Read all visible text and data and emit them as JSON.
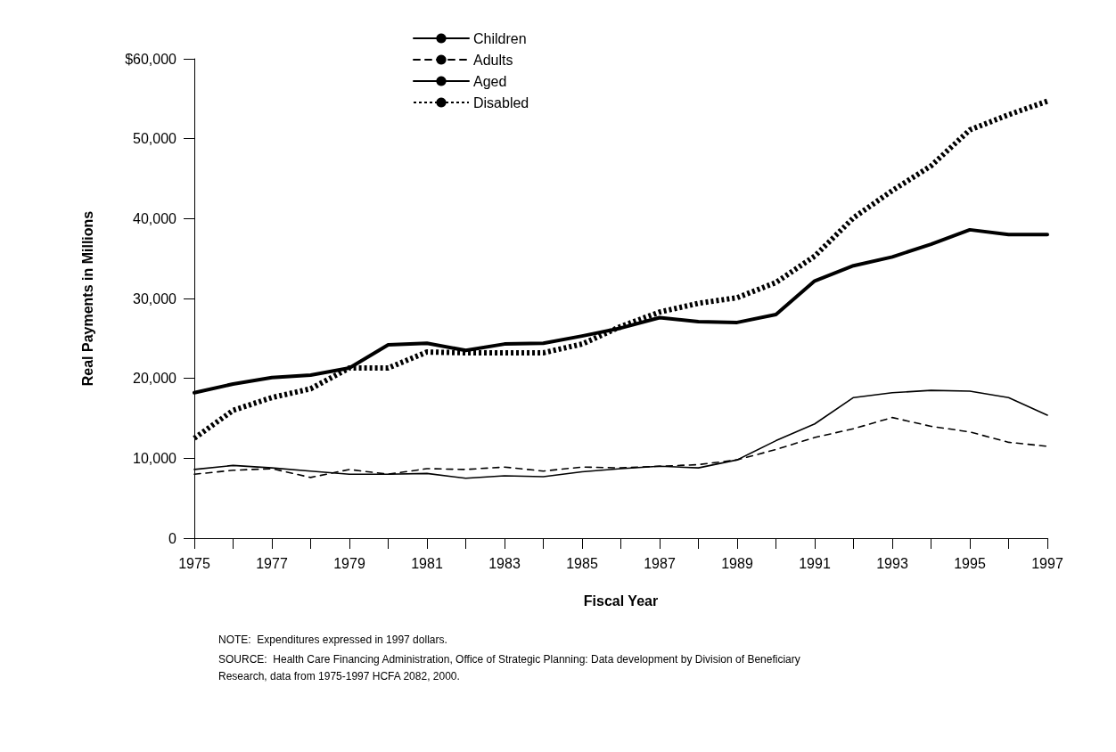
{
  "chart_data": {
    "type": "line",
    "xlabel": "Fiscal Year",
    "ylabel": "Real Payments in Millions",
    "x": [
      1975,
      1976,
      1977,
      1978,
      1979,
      1980,
      1981,
      1982,
      1983,
      1984,
      1985,
      1986,
      1987,
      1988,
      1989,
      1990,
      1991,
      1992,
      1993,
      1994,
      1995,
      1996,
      1997
    ],
    "series": [
      {
        "name": "Children",
        "color": "#000000",
        "line_style": "solid",
        "values": [
          8600,
          9100,
          8800,
          8400,
          8000,
          8000,
          8100,
          7500,
          7800,
          7700,
          8300,
          8700,
          9000,
          8800,
          9800,
          12200,
          14300,
          17600,
          18200,
          18500,
          18400,
          17600,
          15400
        ]
      },
      {
        "name": "Adults",
        "color": "#000000",
        "line_style": "dashed",
        "values": [
          8000,
          8500,
          8700,
          7600,
          8600,
          8000,
          8700,
          8600,
          8900,
          8400,
          8900,
          8800,
          9000,
          9200,
          9800,
          11100,
          12600,
          13700,
          15100,
          14000,
          13300,
          12000,
          11500
        ]
      },
      {
        "name": "Aged",
        "color": "#000000",
        "line_style": "solid",
        "values": [
          18200,
          19300,
          20100,
          20400,
          21300,
          24200,
          24400,
          23500,
          24300,
          24400,
          25300,
          26300,
          27600,
          27100,
          27000,
          28000,
          32200,
          34100,
          35200,
          36800,
          38600,
          38000,
          38000
        ]
      },
      {
        "name": "Disabled",
        "color": "#000000",
        "line_style": "dotted",
        "values": [
          12500,
          16000,
          17600,
          18700,
          21300,
          21300,
          23300,
          23200,
          23200,
          23200,
          24300,
          26500,
          28300,
          29400,
          30100,
          32000,
          35300,
          40100,
          43500,
          46600,
          51100,
          53000,
          54700
        ]
      }
    ],
    "xlim": [
      1975,
      1997
    ],
    "xticks": [
      1975,
      {
        "value": 1976,
        "label": null
      },
      1977,
      {
        "value": 1978,
        "label": null
      },
      1979,
      {
        "value": 1980,
        "label": null
      },
      1981,
      {
        "value": 1982,
        "label": null
      },
      1983,
      {
        "value": 1984,
        "label": null
      },
      1985,
      {
        "value": 1986,
        "label": null
      },
      1987,
      {
        "value": 1988,
        "label": null
      },
      1989,
      {
        "value": 1990,
        "label": null
      },
      1991,
      {
        "value": 1992,
        "label": null
      },
      1993,
      {
        "value": 1994,
        "label": null
      },
      1995,
      {
        "value": 1996,
        "label": null
      },
      1997
    ],
    "ylim": [
      0,
      60000
    ],
    "yticks": [
      0,
      {
        "value": 10000,
        "label": "10,000"
      },
      {
        "value": 20000,
        "label": "20,000"
      },
      {
        "value": 30000,
        "label": "30,000"
      },
      {
        "value": 40000,
        "label": "40,000"
      },
      {
        "value": 50000,
        "label": "50,000"
      },
      {
        "value": 60000,
        "label": "$60,000"
      }
    ],
    "grid": false,
    "legend": "top",
    "marker": "none",
    "annotations": [
      "NOTE:  Expenditures expressed in 1997 dollars.",
      "SOURCE:  Health Care Financing Administration, Office of Strategic Planning: Data development by Division of Beneficiary Research, data from 1975-1997 HCFA 2082, 2000."
    ]
  }
}
